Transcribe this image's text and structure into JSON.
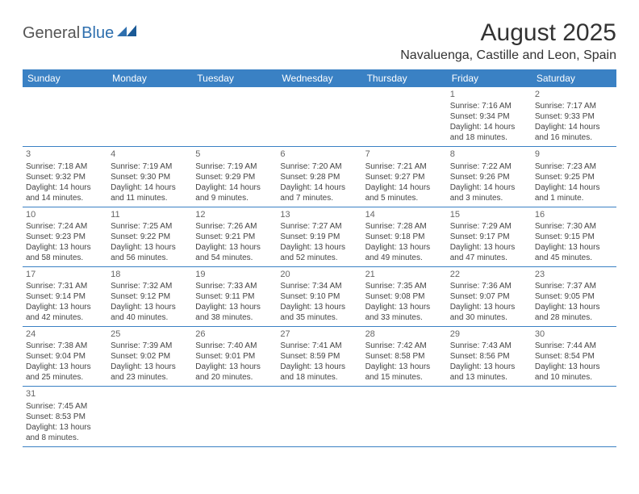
{
  "logo": {
    "part1": "General",
    "part2": "Blue"
  },
  "title": "August 2025",
  "location": "Navaluenga, Castille and Leon, Spain",
  "colors": {
    "header_bg": "#3a81c4",
    "header_text": "#ffffff",
    "border": "#3a81c4",
    "logo_accent": "#2e6fae"
  },
  "weekdays": [
    "Sunday",
    "Monday",
    "Tuesday",
    "Wednesday",
    "Thursday",
    "Friday",
    "Saturday"
  ],
  "weeks": [
    [
      null,
      null,
      null,
      null,
      null,
      {
        "n": "1",
        "sr": "Sunrise: 7:16 AM",
        "ss": "Sunset: 9:34 PM",
        "dl1": "Daylight: 14 hours",
        "dl2": "and 18 minutes."
      },
      {
        "n": "2",
        "sr": "Sunrise: 7:17 AM",
        "ss": "Sunset: 9:33 PM",
        "dl1": "Daylight: 14 hours",
        "dl2": "and 16 minutes."
      }
    ],
    [
      {
        "n": "3",
        "sr": "Sunrise: 7:18 AM",
        "ss": "Sunset: 9:32 PM",
        "dl1": "Daylight: 14 hours",
        "dl2": "and 14 minutes."
      },
      {
        "n": "4",
        "sr": "Sunrise: 7:19 AM",
        "ss": "Sunset: 9:30 PM",
        "dl1": "Daylight: 14 hours",
        "dl2": "and 11 minutes."
      },
      {
        "n": "5",
        "sr": "Sunrise: 7:19 AM",
        "ss": "Sunset: 9:29 PM",
        "dl1": "Daylight: 14 hours",
        "dl2": "and 9 minutes."
      },
      {
        "n": "6",
        "sr": "Sunrise: 7:20 AM",
        "ss": "Sunset: 9:28 PM",
        "dl1": "Daylight: 14 hours",
        "dl2": "and 7 minutes."
      },
      {
        "n": "7",
        "sr": "Sunrise: 7:21 AM",
        "ss": "Sunset: 9:27 PM",
        "dl1": "Daylight: 14 hours",
        "dl2": "and 5 minutes."
      },
      {
        "n": "8",
        "sr": "Sunrise: 7:22 AM",
        "ss": "Sunset: 9:26 PM",
        "dl1": "Daylight: 14 hours",
        "dl2": "and 3 minutes."
      },
      {
        "n": "9",
        "sr": "Sunrise: 7:23 AM",
        "ss": "Sunset: 9:25 PM",
        "dl1": "Daylight: 14 hours",
        "dl2": "and 1 minute."
      }
    ],
    [
      {
        "n": "10",
        "sr": "Sunrise: 7:24 AM",
        "ss": "Sunset: 9:23 PM",
        "dl1": "Daylight: 13 hours",
        "dl2": "and 58 minutes."
      },
      {
        "n": "11",
        "sr": "Sunrise: 7:25 AM",
        "ss": "Sunset: 9:22 PM",
        "dl1": "Daylight: 13 hours",
        "dl2": "and 56 minutes."
      },
      {
        "n": "12",
        "sr": "Sunrise: 7:26 AM",
        "ss": "Sunset: 9:21 PM",
        "dl1": "Daylight: 13 hours",
        "dl2": "and 54 minutes."
      },
      {
        "n": "13",
        "sr": "Sunrise: 7:27 AM",
        "ss": "Sunset: 9:19 PM",
        "dl1": "Daylight: 13 hours",
        "dl2": "and 52 minutes."
      },
      {
        "n": "14",
        "sr": "Sunrise: 7:28 AM",
        "ss": "Sunset: 9:18 PM",
        "dl1": "Daylight: 13 hours",
        "dl2": "and 49 minutes."
      },
      {
        "n": "15",
        "sr": "Sunrise: 7:29 AM",
        "ss": "Sunset: 9:17 PM",
        "dl1": "Daylight: 13 hours",
        "dl2": "and 47 minutes."
      },
      {
        "n": "16",
        "sr": "Sunrise: 7:30 AM",
        "ss": "Sunset: 9:15 PM",
        "dl1": "Daylight: 13 hours",
        "dl2": "and 45 minutes."
      }
    ],
    [
      {
        "n": "17",
        "sr": "Sunrise: 7:31 AM",
        "ss": "Sunset: 9:14 PM",
        "dl1": "Daylight: 13 hours",
        "dl2": "and 42 minutes."
      },
      {
        "n": "18",
        "sr": "Sunrise: 7:32 AM",
        "ss": "Sunset: 9:12 PM",
        "dl1": "Daylight: 13 hours",
        "dl2": "and 40 minutes."
      },
      {
        "n": "19",
        "sr": "Sunrise: 7:33 AM",
        "ss": "Sunset: 9:11 PM",
        "dl1": "Daylight: 13 hours",
        "dl2": "and 38 minutes."
      },
      {
        "n": "20",
        "sr": "Sunrise: 7:34 AM",
        "ss": "Sunset: 9:10 PM",
        "dl1": "Daylight: 13 hours",
        "dl2": "and 35 minutes."
      },
      {
        "n": "21",
        "sr": "Sunrise: 7:35 AM",
        "ss": "Sunset: 9:08 PM",
        "dl1": "Daylight: 13 hours",
        "dl2": "and 33 minutes."
      },
      {
        "n": "22",
        "sr": "Sunrise: 7:36 AM",
        "ss": "Sunset: 9:07 PM",
        "dl1": "Daylight: 13 hours",
        "dl2": "and 30 minutes."
      },
      {
        "n": "23",
        "sr": "Sunrise: 7:37 AM",
        "ss": "Sunset: 9:05 PM",
        "dl1": "Daylight: 13 hours",
        "dl2": "and 28 minutes."
      }
    ],
    [
      {
        "n": "24",
        "sr": "Sunrise: 7:38 AM",
        "ss": "Sunset: 9:04 PM",
        "dl1": "Daylight: 13 hours",
        "dl2": "and 25 minutes."
      },
      {
        "n": "25",
        "sr": "Sunrise: 7:39 AM",
        "ss": "Sunset: 9:02 PM",
        "dl1": "Daylight: 13 hours",
        "dl2": "and 23 minutes."
      },
      {
        "n": "26",
        "sr": "Sunrise: 7:40 AM",
        "ss": "Sunset: 9:01 PM",
        "dl1": "Daylight: 13 hours",
        "dl2": "and 20 minutes."
      },
      {
        "n": "27",
        "sr": "Sunrise: 7:41 AM",
        "ss": "Sunset: 8:59 PM",
        "dl1": "Daylight: 13 hours",
        "dl2": "and 18 minutes."
      },
      {
        "n": "28",
        "sr": "Sunrise: 7:42 AM",
        "ss": "Sunset: 8:58 PM",
        "dl1": "Daylight: 13 hours",
        "dl2": "and 15 minutes."
      },
      {
        "n": "29",
        "sr": "Sunrise: 7:43 AM",
        "ss": "Sunset: 8:56 PM",
        "dl1": "Daylight: 13 hours",
        "dl2": "and 13 minutes."
      },
      {
        "n": "30",
        "sr": "Sunrise: 7:44 AM",
        "ss": "Sunset: 8:54 PM",
        "dl1": "Daylight: 13 hours",
        "dl2": "and 10 minutes."
      }
    ],
    [
      {
        "n": "31",
        "sr": "Sunrise: 7:45 AM",
        "ss": "Sunset: 8:53 PM",
        "dl1": "Daylight: 13 hours",
        "dl2": "and 8 minutes."
      },
      null,
      null,
      null,
      null,
      null,
      null
    ]
  ]
}
